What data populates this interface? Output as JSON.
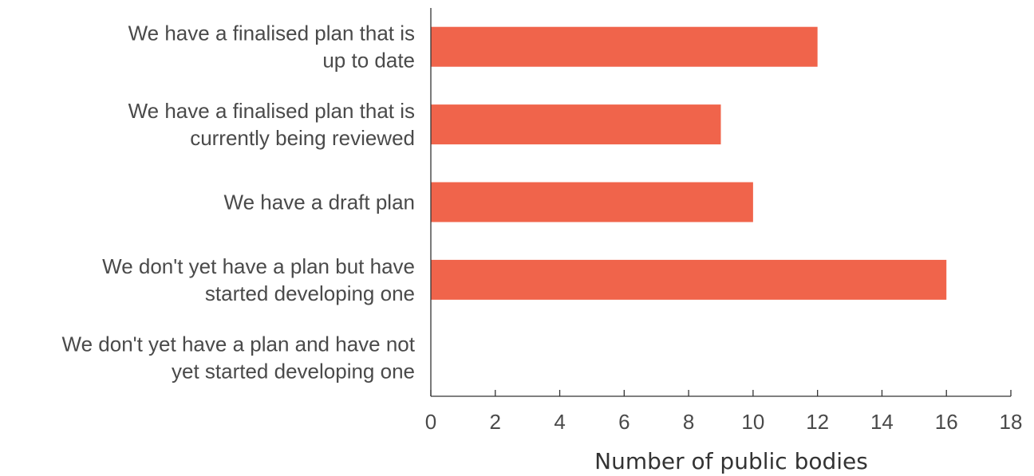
{
  "chart_data": {
    "type": "bar",
    "orientation": "horizontal",
    "categories": [
      [
        "We have a finalised plan that is",
        "up to date"
      ],
      [
        "We have a finalised plan that is",
        "currently being reviewed"
      ],
      [
        "We have a draft plan"
      ],
      [
        "We don't yet have a plan but have",
        "started developing one"
      ],
      [
        "We don't yet have a plan and have not",
        "yet started developing one"
      ]
    ],
    "values": [
      12,
      9,
      10,
      16,
      0
    ],
    "xlabel": "Number of public bodies",
    "ylabel": "",
    "xlim": [
      0,
      18
    ],
    "xticks": [
      "0",
      "2",
      "4",
      "6",
      "8",
      "10",
      "12",
      "14",
      "16",
      "18"
    ],
    "bar_color": "#f0644b",
    "axis_color": "#333333",
    "grid": false
  }
}
